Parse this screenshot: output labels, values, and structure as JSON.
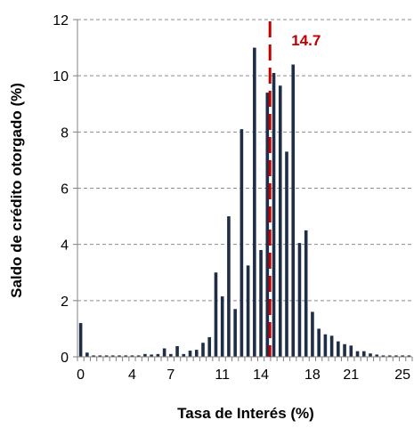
{
  "chart_data": {
    "type": "bar",
    "title": "",
    "xlabel": "Tasa de Interés (%)",
    "ylabel": "Saldo de crédito otorgado (%)",
    "xlim": [
      -0.25,
      25.75
    ],
    "ylim": [
      0,
      12
    ],
    "xticks": [
      0,
      4,
      7,
      11,
      14,
      18,
      21,
      25
    ],
    "yticks": [
      0,
      2,
      4,
      6,
      8,
      10,
      12
    ],
    "grid": {
      "y": true,
      "x": false,
      "style": "dashed"
    },
    "bar_color": "#1f2d47",
    "annotation": {
      "label": "14.7",
      "x": 14.7,
      "line_style": "dashed",
      "color": "#c00000"
    },
    "x": [
      0,
      0.5,
      1,
      1.5,
      2,
      2.5,
      3,
      3.5,
      4,
      4.5,
      5,
      5.5,
      6,
      6.5,
      7,
      7.5,
      8,
      8.5,
      9,
      9.5,
      10,
      10.5,
      11,
      11.5,
      12,
      12.5,
      13,
      13.5,
      14,
      14.5,
      15,
      15.5,
      16,
      16.5,
      17,
      17.5,
      18,
      18.5,
      19,
      19.5,
      20,
      20.5,
      21,
      21.5,
      22,
      22.5,
      23,
      23.5,
      24,
      24.5,
      25,
      25.5
    ],
    "values": [
      1.2,
      0.15,
      0.05,
      0.05,
      0.05,
      0.05,
      0.05,
      0.05,
      0.05,
      0.05,
      0.1,
      0.08,
      0.1,
      0.3,
      0.1,
      0.38,
      0.1,
      0.22,
      0.25,
      0.5,
      0.7,
      3.0,
      2.15,
      5.0,
      1.7,
      8.1,
      3.25,
      11.0,
      3.8,
      9.4,
      10.1,
      9.65,
      7.3,
      10.4,
      4.05,
      4.5,
      1.6,
      1.0,
      0.8,
      0.75,
      0.55,
      0.45,
      0.4,
      0.2,
      0.2,
      0.12,
      0.08,
      0.05,
      0.05,
      0.05,
      0.05,
      0.05
    ]
  }
}
